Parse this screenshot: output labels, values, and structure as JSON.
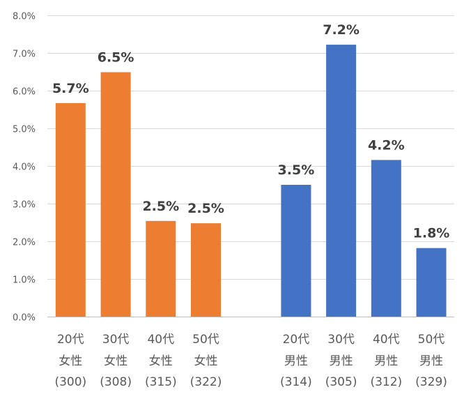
{
  "chart_data": {
    "type": "bar",
    "title": "",
    "xlabel": "",
    "ylabel": "",
    "ylim": [
      0,
      8
    ],
    "y_tick_labels": [
      "0.0%",
      "1.0%",
      "2.0%",
      "3.0%",
      "4.0%",
      "5.0%",
      "6.0%",
      "7.0%",
      "8.0%"
    ],
    "grid": true,
    "legend": "none",
    "categories": [
      {
        "lines": [
          "20代",
          "女性",
          "(300)"
        ],
        "slot": 0
      },
      {
        "lines": [
          "30代",
          "女性",
          "(308)"
        ],
        "slot": 1
      },
      {
        "lines": [
          "40代",
          "女性",
          "(315)"
        ],
        "slot": 2
      },
      {
        "lines": [
          "50代",
          "女性",
          "(322)"
        ],
        "slot": 3
      },
      {
        "lines": [
          "20代",
          "男性",
          "(314)"
        ],
        "slot": 5
      },
      {
        "lines": [
          "30代",
          "男性",
          "(305)"
        ],
        "slot": 6
      },
      {
        "lines": [
          "40代",
          "男性",
          "(312)"
        ],
        "slot": 7
      },
      {
        "lines": [
          "50代",
          "男性",
          "(329)"
        ],
        "slot": 8
      }
    ],
    "values": [
      5.67,
      6.49,
      2.54,
      2.48,
      3.5,
      7.22,
      4.16,
      1.82
    ],
    "data_labels": [
      "5.7%",
      "6.5%",
      "2.5%",
      "2.5%",
      "3.5%",
      "7.2%",
      "4.2%",
      "1.8%"
    ],
    "colors": [
      "#ED7D31",
      "#ED7D31",
      "#ED7D31",
      "#ED7D31",
      "#4472C4",
      "#4472C4",
      "#4472C4",
      "#4472C4"
    ]
  }
}
